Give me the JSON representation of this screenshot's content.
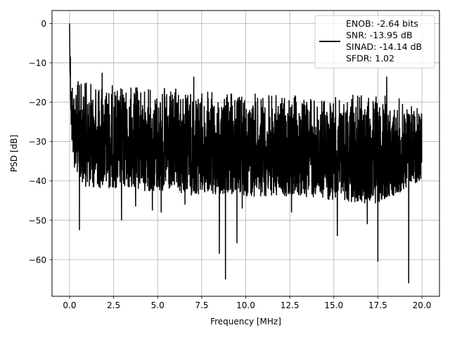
{
  "chart_data": {
    "type": "line",
    "title": "",
    "xlabel": "Frequency [MHz]",
    "ylabel": "PSD [dB]",
    "xlim": [
      -0.996,
      20.996
    ],
    "ylim": [
      -69.3,
      3.3
    ],
    "x_ticks": [
      0.0,
      2.5,
      5.0,
      7.5,
      10.0,
      12.5,
      15.0,
      17.5,
      20.0
    ],
    "x_tick_labels": [
      "0.0",
      "2.5",
      "5.0",
      "7.5",
      "10.0",
      "12.5",
      "15.0",
      "17.5",
      "20.0"
    ],
    "y_ticks": [
      0,
      -10,
      -20,
      -30,
      -40,
      -50,
      -60
    ],
    "y_tick_labels": [
      "0",
      "−10",
      "−20",
      "−30",
      "−40",
      "−50",
      "−60"
    ],
    "grid": true,
    "legend_position": "top-right",
    "legend_lines": [
      "ENOB: -2.64 bits",
      "SNR: -13.95 dB",
      "SINAD: -14.14 dB",
      "SFDR: 1.02"
    ],
    "series": [
      {
        "color": "#000000",
        "x_range": [
          0.0,
          20.0
        ],
        "noise_envelope": {
          "x": [
            0.0,
            0.05,
            0.1,
            0.3,
            1.0,
            3.0,
            5.0,
            7.5,
            10.0,
            12.5,
            15.0,
            17.5,
            20.0
          ],
          "upper": [
            0.0,
            -5.0,
            -12.0,
            -14.0,
            -14.5,
            -15.5,
            -16.0,
            -17.0,
            -17.5,
            -18.0,
            -18.5,
            -17.5,
            -20.0
          ],
          "lower": [
            -5.0,
            -20.0,
            -30.0,
            -38.0,
            -42.0,
            -42.0,
            -43.0,
            -44.0,
            -44.0,
            -44.0,
            -45.0,
            -46.0,
            -40.0
          ]
        },
        "peaks": [
          {
            "x": 0.0,
            "y": 0.0
          },
          {
            "x": 0.13,
            "y": -29.5
          },
          {
            "x": 0.56,
            "y": -52.5
          },
          {
            "x": 1.85,
            "y": -12.5
          },
          {
            "x": 2.95,
            "y": -50.0
          },
          {
            "x": 3.75,
            "y": -46.5
          },
          {
            "x": 4.7,
            "y": -47.5
          },
          {
            "x": 5.2,
            "y": -48.0
          },
          {
            "x": 6.55,
            "y": -46.0
          },
          {
            "x": 7.05,
            "y": -13.5
          },
          {
            "x": 8.5,
            "y": -58.5
          },
          {
            "x": 8.85,
            "y": -65.0
          },
          {
            "x": 9.5,
            "y": -55.8
          },
          {
            "x": 9.8,
            "y": -47.0
          },
          {
            "x": 12.6,
            "y": -48.0
          },
          {
            "x": 15.2,
            "y": -54.0
          },
          {
            "x": 16.9,
            "y": -51.0
          },
          {
            "x": 17.5,
            "y": -60.5
          },
          {
            "x": 18.0,
            "y": -13.5
          },
          {
            "x": 19.25,
            "y": -66.0
          }
        ]
      }
    ]
  }
}
